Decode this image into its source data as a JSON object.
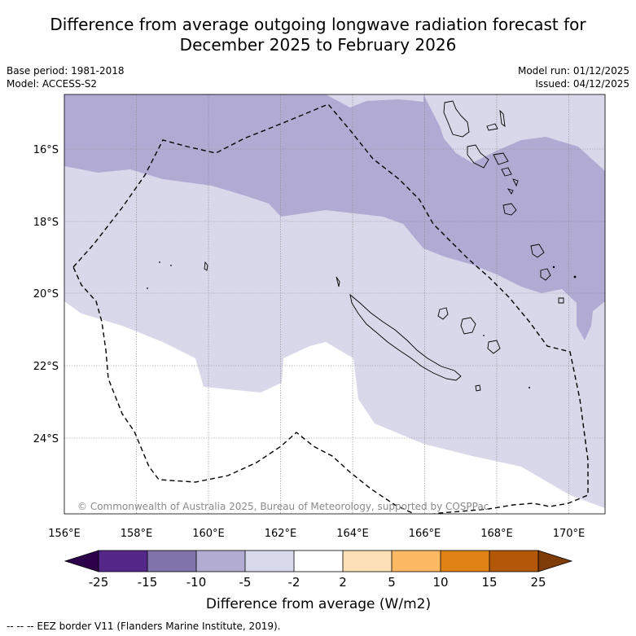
{
  "title_line1": "Difference from average outgoing longwave radiation forecast for",
  "title_line2": "December 2025 to February 2026",
  "meta_left": {
    "base_period": "Base period: 1981-2018",
    "model": "Model: ACCESS-S2"
  },
  "meta_right": {
    "model_run": "Model run: 01/12/2025",
    "issued": "Issued: 04/12/2025"
  },
  "map": {
    "lon_range": [
      156,
      171
    ],
    "lat_range": [
      -26.05,
      -14.5
    ],
    "x_ticks": [
      "156°E",
      "158°E",
      "160°E",
      "162°E",
      "164°E",
      "166°E",
      "168°E",
      "170°E"
    ],
    "y_ticks": [
      "16°S",
      "18°S",
      "20°S",
      "22°S",
      "24°S"
    ],
    "copyright": "© Commonwealth of Australia 2025, Bureau of Meteorology, supported by COSPPac",
    "fill_colors": {
      "band_minus10_minus5": "#b1abd4",
      "band_minus5_minus2": "#d8d8ea",
      "land_coast": "#000000"
    }
  },
  "colorbar": {
    "ticks": [
      "-25",
      "-15",
      "-10",
      "-5",
      "-2",
      "2",
      "5",
      "10",
      "15",
      "25"
    ],
    "colors": [
      "#2d004b",
      "#542788",
      "#8073ac",
      "#b2abd2",
      "#d8daeb",
      "#ffffff",
      "#fee0b6",
      "#fdb863",
      "#e08214",
      "#b35806",
      "#7f3b08"
    ],
    "label": "Difference from average (W/m2)"
  },
  "footer": "--  --  -- EEZ border V11 (Flanders Marine Institute, 2019)."
}
